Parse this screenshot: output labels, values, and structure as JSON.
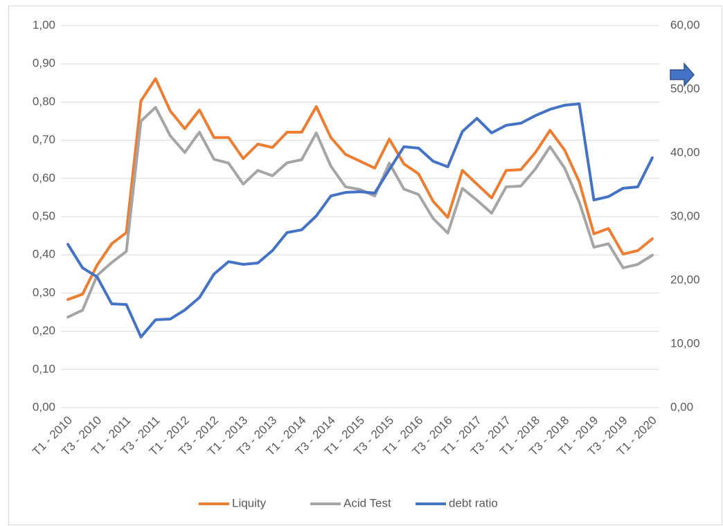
{
  "chart_data": {
    "type": "line",
    "categories": [
      "T1 - 2010",
      null,
      "T3 - 2010",
      null,
      "T1 - 2011",
      null,
      "T3 - 2011",
      null,
      "T1 - 2012",
      null,
      "T3 - 2012",
      null,
      "T1 - 2013",
      null,
      "T3 - 2013",
      null,
      "T1 - 2014",
      null,
      "T3 - 2014",
      null,
      "T1 - 2015",
      null,
      "T3 - 2015",
      null,
      "T1 - 2016",
      null,
      "T3 - 2016",
      null,
      "T1 - 2017",
      null,
      "T3 - 2017",
      null,
      "T1 - 2018",
      null,
      "T3 - 2018",
      null,
      "T1 - 2019",
      null,
      "T3 - 2019",
      null,
      "T1 - 2020"
    ],
    "series": [
      {
        "name": "Liquity",
        "color": "#ED7D31",
        "values": [
          0.283,
          0.297,
          0.373,
          0.429,
          0.458,
          0.803,
          0.861,
          0.777,
          0.73,
          0.779,
          0.707,
          0.707,
          0.652,
          0.69,
          0.681,
          0.721,
          0.721,
          0.788,
          0.707,
          0.663,
          0.645,
          0.627,
          0.703,
          0.638,
          0.612,
          0.54,
          0.498,
          0.621,
          0.585,
          0.549,
          0.621,
          0.623,
          0.668,
          0.726,
          0.674,
          0.591,
          0.455,
          0.469,
          0.402,
          0.411,
          0.442
        ]
      },
      {
        "name": "Acid Test",
        "color": "#A5A5A5",
        "values": [
          0.237,
          0.255,
          0.346,
          0.38,
          0.409,
          0.75,
          0.786,
          0.712,
          0.668,
          0.721,
          0.65,
          0.64,
          0.585,
          0.621,
          0.607,
          0.641,
          0.649,
          0.719,
          0.632,
          0.578,
          0.571,
          0.554,
          0.64,
          0.572,
          0.558,
          0.495,
          0.457,
          0.574,
          0.543,
          0.509,
          0.578,
          0.58,
          0.625,
          0.683,
          0.627,
          0.538,
          0.42,
          0.429,
          0.366,
          0.375,
          0.399
        ]
      },
      {
        "name": "debt ratio",
        "color": "#4472C4",
        "axis": "y2",
        "values": [
          25.65,
          21.96,
          20.54,
          16.3,
          16.2,
          11.09,
          13.8,
          13.91,
          15.33,
          17.28,
          20.98,
          22.93,
          22.5,
          22.72,
          24.67,
          27.5,
          27.93,
          30.11,
          33.26,
          33.8,
          33.91,
          33.7,
          37.39,
          40.98,
          40.76,
          38.7,
          37.83,
          43.37,
          45.43,
          43.15,
          44.35,
          44.67,
          45.87,
          46.85,
          47.5,
          47.72,
          32.61,
          33.15,
          34.46,
          34.67,
          39.24
        ]
      }
    ],
    "ylim": [
      0,
      1
    ],
    "yticks": [
      {
        "value": 0,
        "label": "0,00"
      },
      {
        "value": 0.1,
        "label": "0,10"
      },
      {
        "value": 0.2,
        "label": "0,20"
      },
      {
        "value": 0.3,
        "label": "0,30"
      },
      {
        "value": 0.4,
        "label": "0,40"
      },
      {
        "value": 0.5,
        "label": "0,50"
      },
      {
        "value": 0.6,
        "label": "0,60"
      },
      {
        "value": 0.7,
        "label": "0,70"
      },
      {
        "value": 0.8,
        "label": "0,80"
      },
      {
        "value": 0.9,
        "label": "0,90"
      },
      {
        "value": 1,
        "label": "1,00"
      }
    ],
    "y2lim": [
      0,
      60
    ],
    "y2ticks": [
      {
        "value": 0,
        "label": "0,00"
      },
      {
        "value": 10,
        "label": "10,00"
      },
      {
        "value": 20,
        "label": "20,00"
      },
      {
        "value": 30,
        "label": "30,00"
      },
      {
        "value": 40,
        "label": "40,00"
      },
      {
        "value": 50,
        "label": "50,00"
      },
      {
        "value": 60,
        "label": "60,00"
      }
    ],
    "grid": true,
    "legend": "bottom"
  }
}
